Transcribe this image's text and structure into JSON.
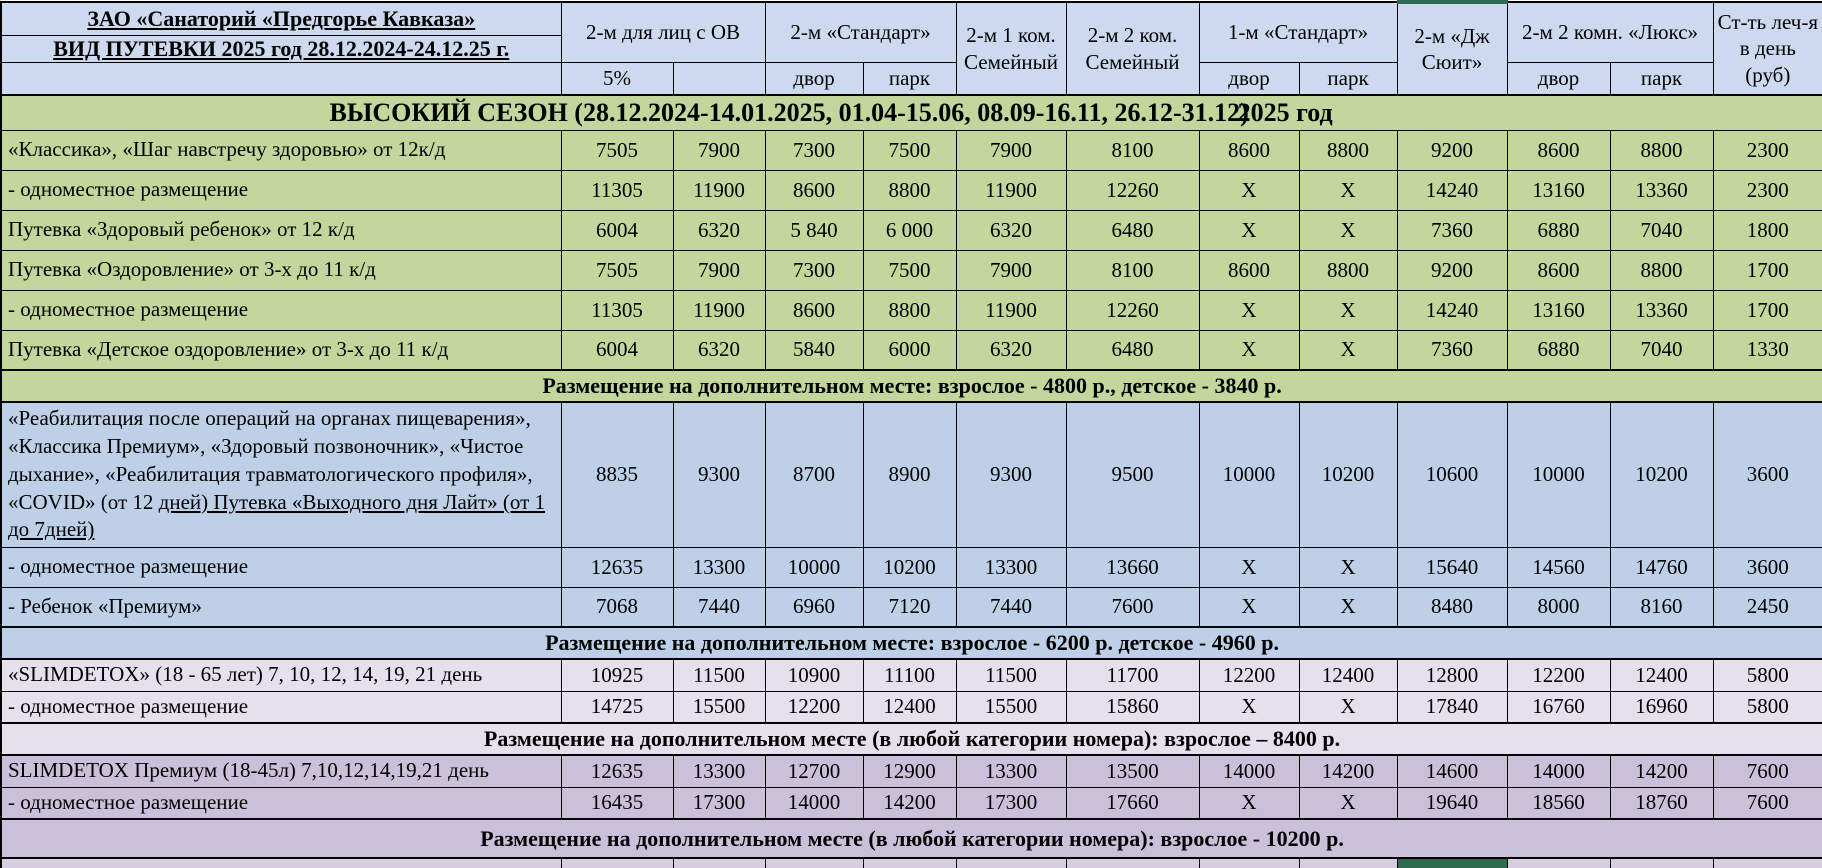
{
  "colors": {
    "header_bg": "#cdd9ee",
    "green": "#c3d69b",
    "blue": "#bdd0e7",
    "lavender": "#e5e0ec",
    "purple": "#cbc0d9",
    "partial_bg": "#d6cde1",
    "selected_cell": "#2e6b50",
    "suite_top_border": "#2e6b50"
  },
  "header": {
    "title_line1": "ЗАО «Санаторий «Предгорье Кавказа»",
    "title_line2": "ВИД ПУТЕВКИ 2025 год 28.12.2024-24.12.25 г.",
    "groups": [
      {
        "label": "2-м для лиц с ОВ",
        "subs": [
          "5%",
          ""
        ]
      },
      {
        "label": "2-м «Стандарт»",
        "subs": [
          "двор",
          "парк"
        ]
      },
      {
        "label": "2-м  1 ком. Семейный"
      },
      {
        "label": "2-м 2 ком. Семейный"
      },
      {
        "label": "1-м «Стандарт»",
        "subs": [
          "двор",
          "парк"
        ]
      },
      {
        "label": "2-м «Дж Сюит»"
      },
      {
        "label": "2-м 2 комн. «Люкс»",
        "subs": [
          "двор",
          "парк"
        ]
      },
      {
        "label": "Ст-ть леч-я в день (руб)"
      }
    ]
  },
  "season": {
    "title": "ВЫСОКИЙ СЕЗОН (28.12.2024-14.01.2025, 01.04-15.06, 08.09-16.11, 26.12-31.12)",
    "year": "2025 год"
  },
  "sections": [
    {
      "theme": "green",
      "rows": [
        {
          "label": "«Классика», «Шаг навстречу здоровью»  от 12к/д",
          "values": [
            "7505",
            "7900",
            "7300",
            "7500",
            "7900",
            "8100",
            "8600",
            "8800",
            "9200",
            "8600",
            "8800",
            "2300"
          ]
        },
        {
          "label": "- одноместное размещение",
          "values": [
            "11305",
            "11900",
            "8600",
            "8800",
            "11900",
            "12260",
            "X",
            "X",
            "14240",
            "13160",
            "13360",
            "2300"
          ]
        },
        {
          "label": "Путевка «Здоровый ребенок» от 12 к/д",
          "values": [
            "6004",
            "6320",
            "5 840",
            "6 000",
            "6320",
            "6480",
            "X",
            "X",
            "7360",
            "6880",
            "7040",
            "1800"
          ]
        },
        {
          "label": "Путевка «Оздоровление» от 3-х до 11 к/д",
          "values": [
            "7505",
            "7900",
            "7300",
            "7500",
            "7900",
            "8100",
            "8600",
            "8800",
            "9200",
            "8600",
            "8800",
            "1700"
          ]
        },
        {
          "label": "- одноместное размещение",
          "values": [
            "11305",
            "11900",
            "8600",
            "8800",
            "11900",
            "12260",
            "X",
            "X",
            "14240",
            "13160",
            "13360",
            "1700"
          ]
        },
        {
          "label": "Путевка «Детское оздоровление» от 3-х до 11 к/д",
          "values": [
            "6004",
            "6320",
            "5840",
            "6000",
            "6320",
            "6480",
            "X",
            "X",
            "7360",
            "6880",
            "7040",
            "1330"
          ]
        }
      ],
      "note": "Размещение на дополнительном месте: взрослое - 4800 р., детское - 3840 р."
    },
    {
      "theme": "blue",
      "rows": [
        {
          "label": "«Реабилитация после операций на органах пищеварения», «Классика Премиум», «Здоровый позвоночник», «Чистое дыхание», «Реабилитация травматологического профиля», «COVID» (от 12 ",
          "label_underlined": "дней) Путевка «Выходного дня Лайт» (от 1 до 7дней)",
          "tall": true,
          "values": [
            "8835",
            "9300",
            "8700",
            "8900",
            "9300",
            "9500",
            "10000",
            "10200",
            "10600",
            "10000",
            "10200",
            "3600"
          ]
        },
        {
          "label": "- одноместное размещение",
          "values": [
            "12635",
            "13300",
            "10000",
            "10200",
            "13300",
            "13660",
            "X",
            "X",
            "15640",
            "14560",
            "14760",
            "3600"
          ]
        },
        {
          "label": "- Ребенок «Премиум»",
          "values": [
            "7068",
            "7440",
            "6960",
            "7120",
            "7440",
            "7600",
            "X",
            "X",
            "8480",
            "8000",
            "8160",
            "2450"
          ]
        }
      ],
      "note": "Размещение на дополнительном месте: взрослое - 6200 р. детское - 4960 р."
    },
    {
      "theme": "lavender",
      "rows": [
        {
          "label": "«SLIMDETOX» (18 - 65 лет) 7, 10, 12, 14, 19, 21 день",
          "values": [
            "10925",
            "11500",
            "10900",
            "11100",
            "11500",
            "11700",
            "12200",
            "12400",
            "12800",
            "12200",
            "12400",
            "5800"
          ]
        },
        {
          "label": "- одноместное размещение",
          "values": [
            "14725",
            "15500",
            "12200",
            "12400",
            "15500",
            "15860",
            "X",
            "X",
            "17840",
            "16760",
            "16960",
            "5800"
          ]
        }
      ],
      "note": "Размещение на дополнительном месте (в любой категории номера): взрослое – 8400 р."
    },
    {
      "theme": "purple",
      "rows": [
        {
          "label": "SLIMDETOX Премиум (18-45л) 7,10,12,14,19,21 день",
          "values": [
            "12635",
            "13300",
            "12700",
            "12900",
            "13300",
            "13500",
            "14000",
            "14200",
            "14600",
            "14000",
            "14200",
            "7600"
          ]
        },
        {
          "label": "- одноместное размещение",
          "values": [
            "16435",
            "17300",
            "14000",
            "14200",
            "17300",
            "17660",
            "X",
            "X",
            "19640",
            "18560",
            "18760",
            "7600"
          ]
        }
      ],
      "note": "Размещение на дополнительном месте (в любой категории номера): взрослое - 10200 р."
    }
  ]
}
